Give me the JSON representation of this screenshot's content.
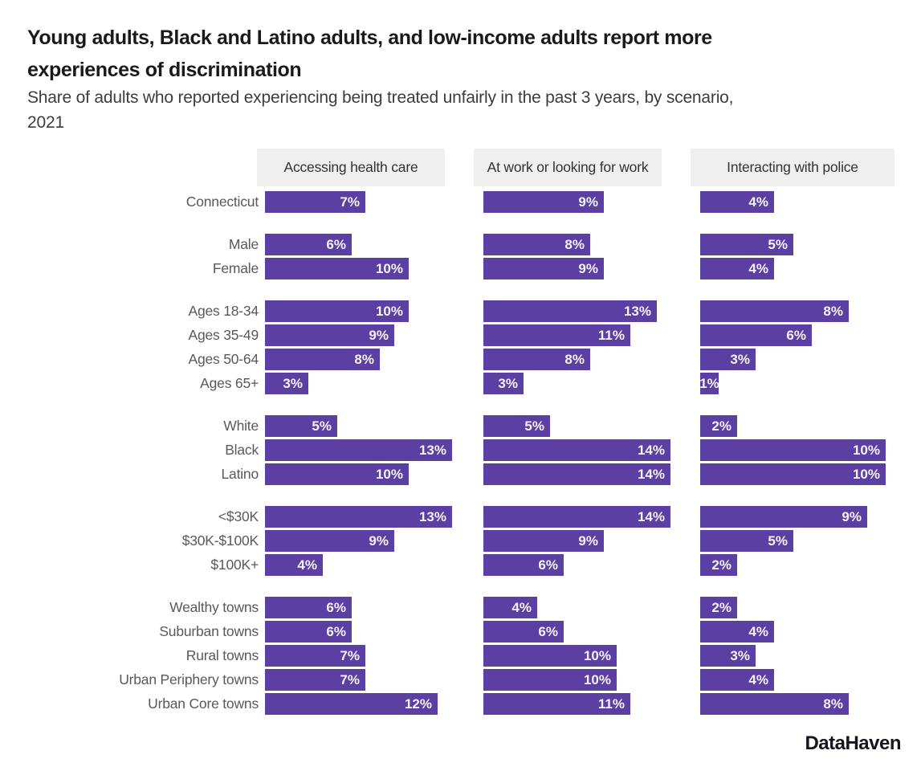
{
  "header": {
    "title_lines": [
      "Young adults, Black and Latino adults, and low-income adults report more",
      "experiences of discrimination"
    ],
    "subtitle_lines": [
      "Share of adults who reported experiencing being treated unfairly in the past 3 years, by scenario,",
      "2021"
    ]
  },
  "footer": {
    "brand": "DataHaven"
  },
  "colors": {
    "bar": "#5c3fa3",
    "header_bg": "#efefef",
    "value_text": "#f4f2f8",
    "row_label_text": "#595959",
    "facet_header_text": "#333333",
    "title_text": "#1a1a1a"
  },
  "chart_data": {
    "type": "bar",
    "orientation": "horizontal",
    "unit": "%",
    "title": "Young adults, Black and Latino adults, and low-income adults report more experiences of discrimination",
    "subtitle": "Share of adults who reported experiencing being treated unfairly in the past 3 years, by scenario, 2021",
    "facets": [
      "Accessing health care",
      "At work or looking for work",
      "Interacting with police"
    ],
    "facet_axis_max": [
      13,
      14,
      10
    ],
    "legend": "none",
    "grid": "off",
    "groups": [
      {
        "name": "overall",
        "rows": [
          {
            "label": "Connecticut",
            "values": [
              7,
              9,
              4
            ]
          }
        ]
      },
      {
        "name": "gender",
        "rows": [
          {
            "label": "Male",
            "values": [
              6,
              8,
              5
            ]
          },
          {
            "label": "Female",
            "values": [
              10,
              9,
              4
            ]
          }
        ]
      },
      {
        "name": "age",
        "rows": [
          {
            "label": "Ages 18-34",
            "values": [
              10,
              13,
              8
            ]
          },
          {
            "label": "Ages 35-49",
            "values": [
              9,
              11,
              6
            ]
          },
          {
            "label": "Ages 50-64",
            "values": [
              8,
              8,
              3
            ]
          },
          {
            "label": "Ages 65+",
            "values": [
              3,
              3,
              1
            ]
          }
        ]
      },
      {
        "name": "race-ethnicity",
        "rows": [
          {
            "label": "White",
            "values": [
              5,
              5,
              2
            ]
          },
          {
            "label": "Black",
            "values": [
              13,
              14,
              10
            ]
          },
          {
            "label": "Latino",
            "values": [
              10,
              14,
              10
            ]
          }
        ]
      },
      {
        "name": "income",
        "rows": [
          {
            "label": "<$30K",
            "values": [
              13,
              14,
              9
            ]
          },
          {
            "label": "$30K-$100K",
            "values": [
              9,
              9,
              5
            ]
          },
          {
            "label": "$100K+",
            "values": [
              4,
              6,
              2
            ]
          }
        ]
      },
      {
        "name": "town-type",
        "rows": [
          {
            "label": "Wealthy towns",
            "values": [
              6,
              4,
              2
            ]
          },
          {
            "label": "Suburban towns",
            "values": [
              6,
              6,
              4
            ]
          },
          {
            "label": "Rural towns",
            "values": [
              7,
              10,
              3
            ]
          },
          {
            "label": "Urban Periphery towns",
            "values": [
              7,
              10,
              4
            ]
          },
          {
            "label": "Urban Core towns",
            "values": [
              12,
              11,
              8
            ]
          }
        ]
      }
    ]
  }
}
